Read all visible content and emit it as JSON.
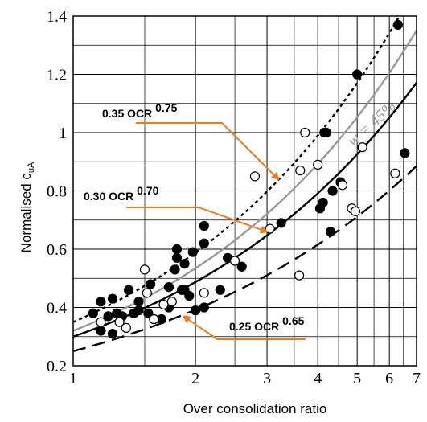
{
  "chart_data": {
    "type": "scatter",
    "xscale": "log",
    "xlim": [
      1,
      7
    ],
    "ylim": [
      0.2,
      1.4
    ],
    "grid": true,
    "xlabel": "Over consolidation ratio",
    "ylabel_main": "Normalised c",
    "ylabel_sub": "uA",
    "x_ticks": [
      1,
      2,
      3,
      4,
      5,
      6,
      7
    ],
    "x_tick_labels": [
      "1",
      "2",
      "3",
      "4",
      "5",
      "6",
      "7"
    ],
    "y_ticks": [
      0.2,
      0.4,
      0.6,
      0.8,
      1.0,
      1.2,
      1.4
    ],
    "y_tick_labels": [
      "0.2",
      "0.4",
      "0.6",
      "0.8",
      "1",
      "1.2",
      "1.4"
    ],
    "curves": [
      {
        "id": "c035",
        "coef": 0.35,
        "exp": 0.75,
        "style": "dotted",
        "color": "#000000"
      },
      {
        "id": "c030",
        "coef": 0.3,
        "exp": 0.7,
        "style": "solid",
        "color": "#000000"
      },
      {
        "id": "c025",
        "coef": 0.25,
        "exp": 0.65,
        "style": "dashed",
        "color": "#000000"
      },
      {
        "id": "cw45",
        "coef": 0.32,
        "exp": 0.74,
        "style": "solid",
        "color": "#999999"
      }
    ],
    "annotations": [
      {
        "base": "0.35 OCR ",
        "power": "0.75",
        "arrow_to": [
          3.2,
          0.84
        ]
      },
      {
        "base": "0.30 OCR ",
        "power": "0.70",
        "arrow_to": [
          3.0,
          0.66
        ]
      },
      {
        "base": "0.25 OCR ",
        "power": "0.65",
        "arrow_to": [
          1.87,
          0.37
        ]
      }
    ],
    "w_label": "w = 45%",
    "arrow_color": "#f07a1e",
    "series": [
      {
        "marker": "filled",
        "points": [
          [
            1.12,
            0.38
          ],
          [
            1.17,
            0.42
          ],
          [
            1.17,
            0.32
          ],
          [
            1.22,
            0.37
          ],
          [
            1.25,
            0.31
          ],
          [
            1.25,
            0.43
          ],
          [
            1.28,
            0.38
          ],
          [
            1.32,
            0.37
          ],
          [
            1.37,
            0.46
          ],
          [
            1.41,
            0.38
          ],
          [
            1.45,
            0.42
          ],
          [
            1.45,
            0.39
          ],
          [
            1.53,
            0.38
          ],
          [
            1.55,
            0.48
          ],
          [
            1.58,
            0.36
          ],
          [
            1.65,
            0.36
          ],
          [
            1.72,
            0.47
          ],
          [
            1.72,
            0.4
          ],
          [
            1.78,
            0.53
          ],
          [
            1.8,
            0.57
          ],
          [
            1.8,
            0.6
          ],
          [
            1.85,
            0.46
          ],
          [
            1.88,
            0.46
          ],
          [
            1.88,
            0.55
          ],
          [
            1.93,
            0.44
          ],
          [
            1.97,
            0.59
          ],
          [
            2.0,
            0.39
          ],
          [
            2.1,
            0.68
          ],
          [
            2.1,
            0.62
          ],
          [
            2.1,
            0.4
          ],
          [
            2.3,
            0.46
          ],
          [
            2.4,
            0.57
          ],
          [
            2.6,
            0.54
          ],
          [
            3.25,
            0.69
          ],
          [
            4.05,
            0.74
          ],
          [
            4.12,
            0.76
          ],
          [
            4.15,
            1.0
          ],
          [
            4.2,
            1.0
          ],
          [
            4.3,
            0.66
          ],
          [
            4.35,
            0.8
          ],
          [
            4.55,
            0.83
          ],
          [
            5.0,
            1.2
          ],
          [
            6.3,
            1.37
          ],
          [
            6.55,
            0.93
          ]
        ]
      },
      {
        "marker": "open",
        "points": [
          [
            1.17,
            0.35
          ],
          [
            1.3,
            0.35
          ],
          [
            1.35,
            0.33
          ],
          [
            1.5,
            0.53
          ],
          [
            1.52,
            0.45
          ],
          [
            1.58,
            0.36
          ],
          [
            1.67,
            0.41
          ],
          [
            1.75,
            0.42
          ],
          [
            2.1,
            0.45
          ],
          [
            2.5,
            0.56
          ],
          [
            2.8,
            0.85
          ],
          [
            3.05,
            0.67
          ],
          [
            3.6,
            0.51
          ],
          [
            3.62,
            0.87
          ],
          [
            3.72,
            1.0
          ],
          [
            4.0,
            0.89
          ],
          [
            4.6,
            0.82
          ],
          [
            4.85,
            0.74
          ],
          [
            4.95,
            0.73
          ],
          [
            5.15,
            0.95
          ],
          [
            6.2,
            0.86
          ]
        ]
      }
    ]
  }
}
